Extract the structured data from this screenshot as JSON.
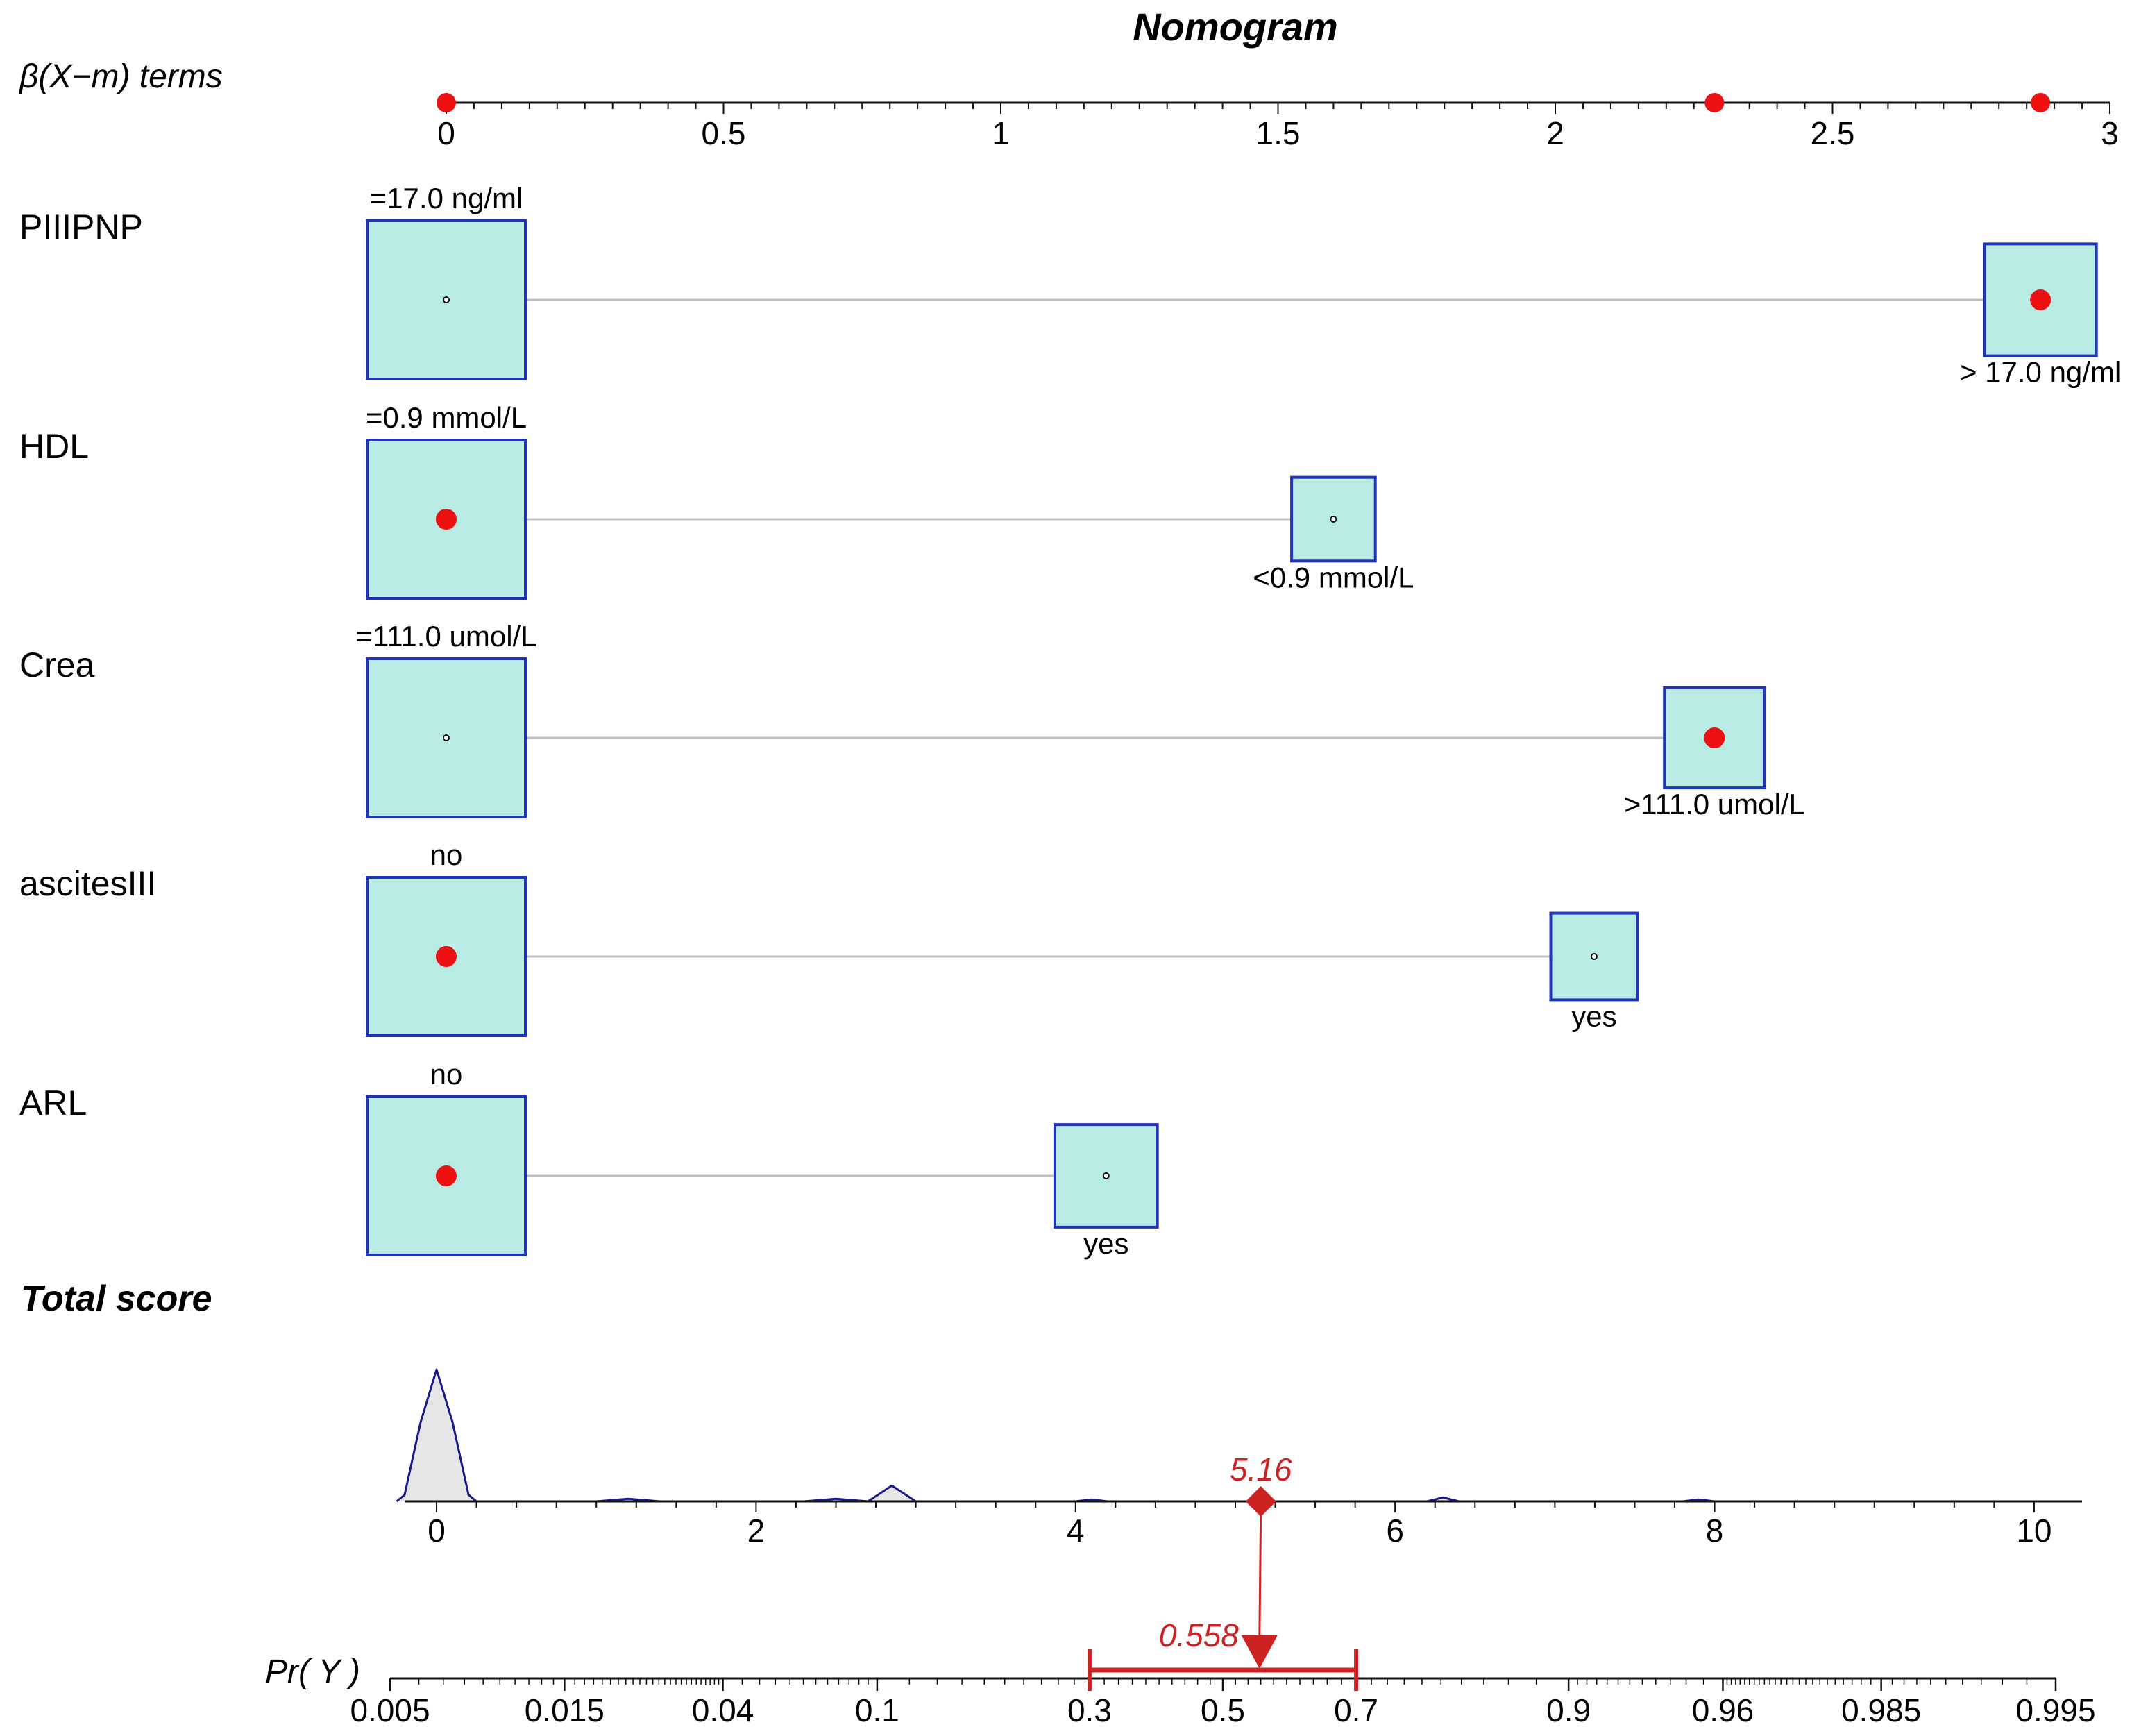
{
  "chart_data": {
    "type": "nomogram",
    "title": "Nomogram",
    "beta_axis": {
      "label": "β(X−m) terms",
      "range": [
        0,
        3
      ],
      "ticks": [
        "0",
        "0.5",
        "1",
        "1.5",
        "2",
        "2.5",
        "3"
      ],
      "selected_points": [
        0,
        2.287,
        2.875
      ]
    },
    "variables": [
      {
        "name": "PIIIPNP",
        "levels": [
          {
            "label": "=17.0 ng/ml",
            "beta": 0,
            "weight": 1.0,
            "selected": false
          },
          {
            "label": "> 17.0 ng/ml",
            "beta": 2.875,
            "weight": 0.5,
            "selected": true
          }
        ]
      },
      {
        "name": "HDL",
        "levels": [
          {
            "label": "=0.9 mmol/L",
            "beta": 0,
            "weight": 1.0,
            "selected": true
          },
          {
            "label": "<0.9 mmol/L",
            "beta": 1.6,
            "weight": 0.28,
            "selected": false
          }
        ]
      },
      {
        "name": "Crea",
        "levels": [
          {
            "label": "=111.0 umol/L",
            "beta": 0,
            "weight": 1.0,
            "selected": false
          },
          {
            "label": ">111.0 umol/L",
            "beta": 2.287,
            "weight": 0.4,
            "selected": true
          }
        ]
      },
      {
        "name": "ascitesIII",
        "levels": [
          {
            "label": "no",
            "beta": 0,
            "weight": 1.0,
            "selected": true
          },
          {
            "label": "yes",
            "beta": 2.07,
            "weight": 0.3,
            "selected": false
          }
        ]
      },
      {
        "name": "ARL",
        "levels": [
          {
            "label": "no",
            "beta": 0,
            "weight": 1.0,
            "selected": true
          },
          {
            "label": "yes",
            "beta": 1.19,
            "weight": 0.42,
            "selected": false
          }
        ]
      }
    ],
    "total_score": {
      "label": "Total score",
      "range": [
        -0.2,
        10.3
      ],
      "ticks": [
        "0",
        "2",
        "4",
        "6",
        "8",
        "10"
      ],
      "value": 5.16,
      "value_label": "5.16",
      "density": [
        [
          -0.25,
          0
        ],
        [
          -0.2,
          0.05
        ],
        [
          -0.1,
          0.6
        ],
        [
          0,
          1
        ],
        [
          0.1,
          0.6
        ],
        [
          0.2,
          0.05
        ],
        [
          0.25,
          0
        ],
        [
          1.0,
          0
        ],
        [
          1.2,
          0.02
        ],
        [
          1.4,
          0
        ],
        [
          2.3,
          0
        ],
        [
          2.5,
          0.02
        ],
        [
          2.7,
          0
        ],
        [
          2.85,
          0.12
        ],
        [
          3.0,
          0
        ],
        [
          4.0,
          0
        ],
        [
          4.1,
          0.015
        ],
        [
          4.2,
          0
        ],
        [
          6.2,
          0
        ],
        [
          6.3,
          0.03
        ],
        [
          6.4,
          0
        ],
        [
          7.8,
          0
        ],
        [
          7.9,
          0.015
        ],
        [
          8.0,
          0
        ],
        [
          10.3,
          0
        ]
      ]
    },
    "probability_axis": {
      "label": "Pr( Y )",
      "ticks": [
        "0.005",
        "0.015",
        "0.04",
        "0.1",
        "0.3",
        "0.5",
        "0.7",
        "0.9",
        "0.96",
        "0.985",
        "0.995"
      ],
      "value": 0.558,
      "value_label": "0.558",
      "ci": [
        0.3,
        0.7
      ]
    },
    "colors": {
      "point": "#ee1111",
      "box_fill": "#b8ebe4",
      "box_stroke": "#2233bb",
      "annotation": "#cc2222",
      "density_fill": "#e6e6e6",
      "density_stroke": "#1a1a8c"
    }
  }
}
